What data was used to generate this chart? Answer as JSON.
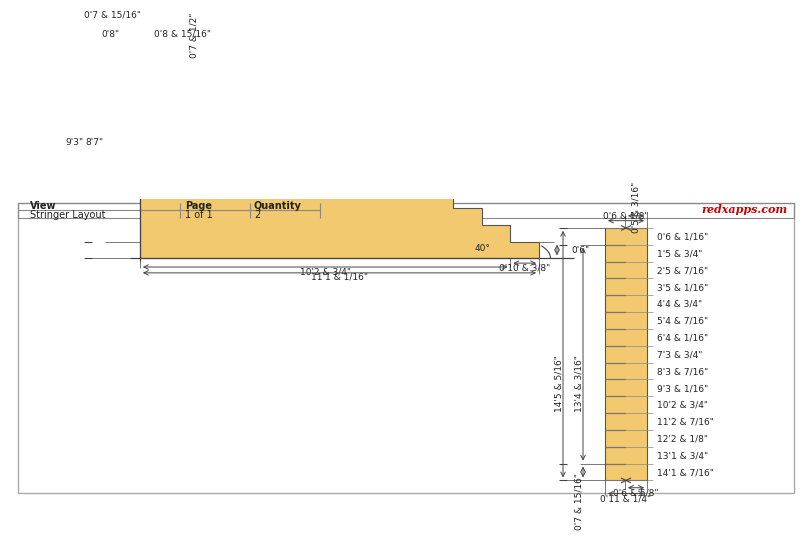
{
  "title": "Stringer Layout",
  "page": "1 of 1",
  "quantity": "2",
  "stringer_fill": "#f2c96e",
  "stringer_edge": "#555555",
  "line_color": "#444444",
  "text_color": "#222222",
  "red_text": "#cc0000",
  "n_steps": 14,
  "left_stringer": {
    "label_top_offset": "0'7 & 15/16\"",
    "label_riser_top": "0'7 & 1/2\"",
    "label_tread_top": "0'8 & 15/16\"",
    "label_riser_small": "0'8\"",
    "label_height_inner": "8'7\"",
    "label_height_outer": "9'3\"",
    "label_run_inner": "10'2 & 3/4\"",
    "label_run_outer": "11'1 & 1/16\"",
    "label_bottom_riser": "0'6\"",
    "label_bottom_tread": "0'10 & 3/8\""
  },
  "right_stringer": {
    "top_width_label": "0'5 & 3/16\"",
    "top_total_label": "0'6 & 1/8\"",
    "bot_width_label": "0'7 & 15/16\"",
    "bot_h_label": "0'6 & 5/8\"",
    "bot_dim": "0'11 & 1/4\"",
    "height_inner_label": "13'4 & 3/16\"",
    "height_outer_label": "14'5 & 5/16\"",
    "step_labels": [
      "0'6 & 1/16\"",
      "1'5 & 3/4\"",
      "2'5 & 7/16\"",
      "3'5 & 1/16\"",
      "4'4 & 3/4\"",
      "5'4 & 7/16\"",
      "6'4 & 1/16\"",
      "7'3 & 3/4\"",
      "8'3 & 7/16\"",
      "9'3 & 1/16\"",
      "10'2 & 3/4\"",
      "11'2 & 7/16\"",
      "12'2 & 1/8\"",
      "13'1 & 3/4\"",
      "14'1 & 7/16\""
    ]
  },
  "angle_label": "40°",
  "website": "redxapps.com"
}
